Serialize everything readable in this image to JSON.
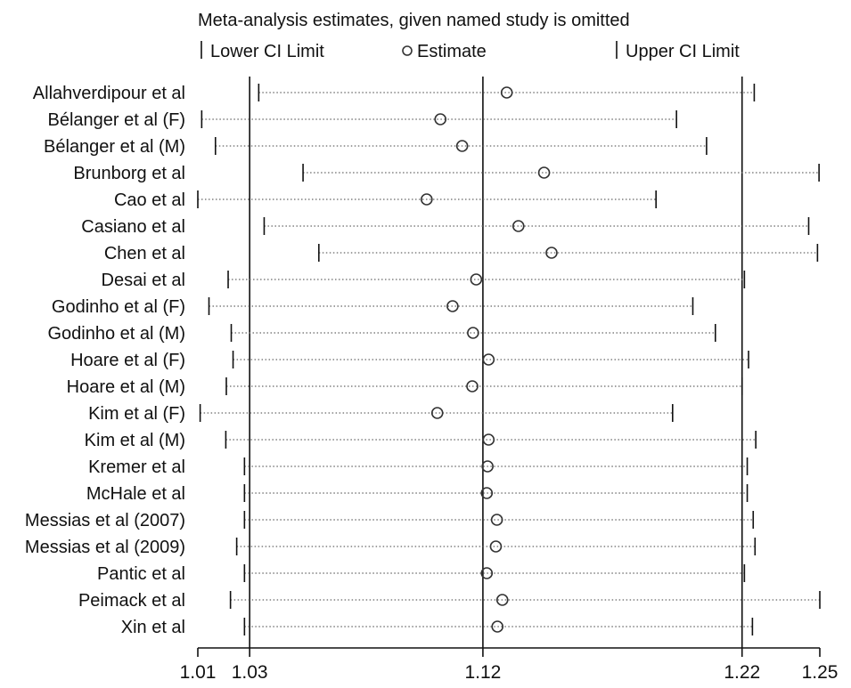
{
  "chart_data": {
    "type": "forest",
    "title": "Meta-analysis estimates, given named study is omitted",
    "legend": {
      "lower": "Lower CI Limit",
      "estimate": "Estimate",
      "upper": "Upper CI Limit",
      "placement": "top"
    },
    "xlim": [
      1.01,
      1.25
    ],
    "x_ticks": [
      1.01,
      1.03,
      1.12,
      1.22,
      1.25
    ],
    "x_tick_labels": [
      "1.01",
      "1.03",
      "1.12",
      "1.22",
      "1.25"
    ],
    "reference_lines": [
      1.03,
      1.12,
      1.22
    ],
    "studies": [
      {
        "name": "Allahverdipour et al",
        "lower": 1.0335,
        "estimate": 1.1292,
        "upper": 1.2247
      },
      {
        "name": "Bélanger et al (F)",
        "lower": 1.0115,
        "estimate": 1.1036,
        "upper": 1.1947
      },
      {
        "name": "Bélanger et al (M)",
        "lower": 1.0168,
        "estimate": 1.112,
        "upper": 1.2063
      },
      {
        "name": "Brunborg et al",
        "lower": 1.0506,
        "estimate": 1.1436,
        "upper": 1.2497
      },
      {
        "name": "Cao et al",
        "lower": 1.01,
        "estimate": 1.0983,
        "upper": 1.1868
      },
      {
        "name": "Casiano et al",
        "lower": 1.0356,
        "estimate": 1.1337,
        "upper": 1.2457
      },
      {
        "name": "Chen et al",
        "lower": 1.0567,
        "estimate": 1.1465,
        "upper": 1.2491
      },
      {
        "name": "Desai et al",
        "lower": 1.0217,
        "estimate": 1.1174,
        "upper": 1.2209
      },
      {
        "name": "Godinho et al (F)",
        "lower": 1.0143,
        "estimate": 1.1083,
        "upper": 1.201
      },
      {
        "name": "Godinho et al (M)",
        "lower": 1.0229,
        "estimate": 1.1162,
        "upper": 1.2097
      },
      {
        "name": "Hoare et al (F)",
        "lower": 1.0236,
        "estimate": 1.1222,
        "upper": 1.2225
      },
      {
        "name": "Hoare et al (M)",
        "lower": 1.021,
        "estimate": 1.1159,
        "upper": 1.22
      },
      {
        "name": "Kim et al (F)",
        "lower": 1.0109,
        "estimate": 1.1024,
        "upper": 1.1932
      },
      {
        "name": "Kim et al (M)",
        "lower": 1.0208,
        "estimate": 1.1222,
        "upper": 1.2253
      },
      {
        "name": "Kremer et al",
        "lower": 1.028,
        "estimate": 1.1218,
        "upper": 1.222
      },
      {
        "name": "McHale et al",
        "lower": 1.028,
        "estimate": 1.1215,
        "upper": 1.222
      },
      {
        "name": "Messias et al (2007)",
        "lower": 1.028,
        "estimate": 1.1254,
        "upper": 1.2243
      },
      {
        "name": "Messias et al (2009)",
        "lower": 1.025,
        "estimate": 1.125,
        "upper": 1.225
      },
      {
        "name": "Pantic et al",
        "lower": 1.028,
        "estimate": 1.1215,
        "upper": 1.2209
      },
      {
        "name": "Peimack et al",
        "lower": 1.0226,
        "estimate": 1.1275,
        "upper": 1.25
      },
      {
        "name": "Xin et al",
        "lower": 1.028,
        "estimate": 1.1256,
        "upper": 1.224
      }
    ]
  }
}
